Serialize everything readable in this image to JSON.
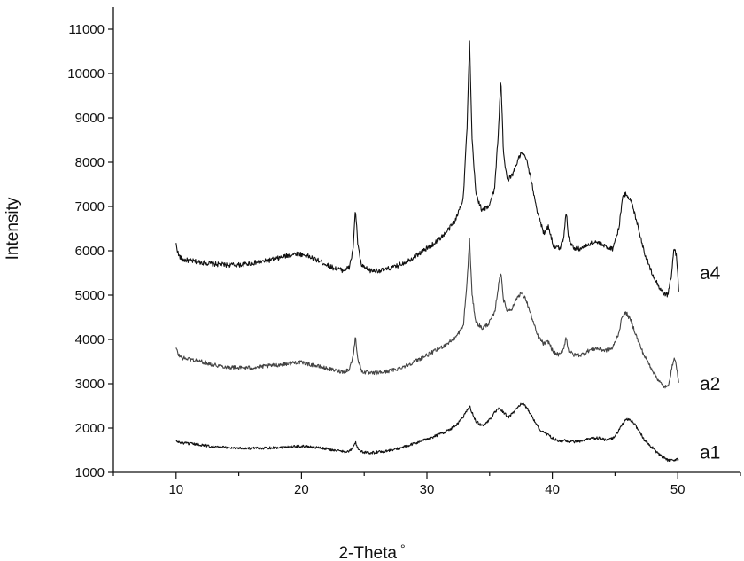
{
  "chart_data": {
    "type": "line",
    "xlabel": "2-Theta",
    "xlabel_suffix": "°",
    "ylabel": "Intensity",
    "xlim": [
      5,
      55
    ],
    "ylim": [
      1000,
      11500
    ],
    "xticks": [
      10,
      20,
      30,
      40,
      50
    ],
    "yticks": [
      1000,
      2000,
      3000,
      4000,
      5000,
      6000,
      7000,
      8000,
      9000,
      10000,
      11000
    ],
    "series": [
      {
        "name": "a4",
        "color": "#111111",
        "points": [
          [
            10.0,
            6150
          ],
          [
            10.2,
            5900
          ],
          [
            10.5,
            5800
          ],
          [
            11,
            5780
          ],
          [
            12,
            5740
          ],
          [
            13,
            5700
          ],
          [
            14,
            5680
          ],
          [
            15,
            5680
          ],
          [
            16,
            5720
          ],
          [
            17,
            5760
          ],
          [
            18,
            5820
          ],
          [
            19,
            5900
          ],
          [
            19.7,
            5940
          ],
          [
            20.5,
            5880
          ],
          [
            21.5,
            5760
          ],
          [
            22.5,
            5620
          ],
          [
            23.3,
            5560
          ],
          [
            23.8,
            5620
          ],
          [
            24.1,
            6000
          ],
          [
            24.3,
            6950
          ],
          [
            24.5,
            6100
          ],
          [
            24.8,
            5650
          ],
          [
            25.5,
            5550
          ],
          [
            26.5,
            5560
          ],
          [
            27.5,
            5640
          ],
          [
            28.5,
            5780
          ],
          [
            29.5,
            5960
          ],
          [
            30.5,
            6150
          ],
          [
            31.5,
            6400
          ],
          [
            32.3,
            6700
          ],
          [
            32.9,
            7200
          ],
          [
            33.2,
            8800
          ],
          [
            33.4,
            10700
          ],
          [
            33.6,
            8500
          ],
          [
            33.9,
            7300
          ],
          [
            34.4,
            6900
          ],
          [
            34.9,
            7000
          ],
          [
            35.4,
            7400
          ],
          [
            35.7,
            8700
          ],
          [
            35.9,
            9900
          ],
          [
            36.1,
            8200
          ],
          [
            36.4,
            7600
          ],
          [
            36.8,
            7700
          ],
          [
            37.2,
            8000
          ],
          [
            37.5,
            8200
          ],
          [
            37.9,
            8100
          ],
          [
            38.3,
            7600
          ],
          [
            38.8,
            6900
          ],
          [
            39.3,
            6400
          ],
          [
            39.7,
            6550
          ],
          [
            40.1,
            6100
          ],
          [
            40.6,
            6050
          ],
          [
            40.9,
            6300
          ],
          [
            41.1,
            6900
          ],
          [
            41.3,
            6300
          ],
          [
            41.7,
            6050
          ],
          [
            42.3,
            6050
          ],
          [
            42.9,
            6150
          ],
          [
            43.5,
            6200
          ],
          [
            44.2,
            6100
          ],
          [
            44.8,
            6050
          ],
          [
            45.3,
            6500
          ],
          [
            45.6,
            7200
          ],
          [
            45.9,
            7300
          ],
          [
            46.3,
            7100
          ],
          [
            46.8,
            6600
          ],
          [
            47.3,
            6000
          ],
          [
            47.8,
            5600
          ],
          [
            48.3,
            5300
          ],
          [
            48.8,
            5050
          ],
          [
            49.2,
            5000
          ],
          [
            49.5,
            5450
          ],
          [
            49.7,
            6050
          ],
          [
            49.9,
            5900
          ],
          [
            50.1,
            5050
          ]
        ]
      },
      {
        "name": "a2",
        "color": "#444444",
        "points": [
          [
            10.0,
            3800
          ],
          [
            10.2,
            3650
          ],
          [
            10.5,
            3580
          ],
          [
            11,
            3560
          ],
          [
            12,
            3500
          ],
          [
            13,
            3430
          ],
          [
            14,
            3380
          ],
          [
            15,
            3360
          ],
          [
            16,
            3360
          ],
          [
            17,
            3390
          ],
          [
            18,
            3420
          ],
          [
            19,
            3460
          ],
          [
            19.7,
            3490
          ],
          [
            20.5,
            3450
          ],
          [
            21.5,
            3380
          ],
          [
            22.5,
            3310
          ],
          [
            23.3,
            3270
          ],
          [
            23.8,
            3320
          ],
          [
            24.1,
            3600
          ],
          [
            24.3,
            4050
          ],
          [
            24.5,
            3550
          ],
          [
            24.8,
            3280
          ],
          [
            25.5,
            3230
          ],
          [
            26.5,
            3260
          ],
          [
            27.5,
            3320
          ],
          [
            28.5,
            3430
          ],
          [
            29.5,
            3570
          ],
          [
            30.5,
            3720
          ],
          [
            31.5,
            3880
          ],
          [
            32.3,
            4050
          ],
          [
            32.9,
            4300
          ],
          [
            33.2,
            5300
          ],
          [
            33.4,
            6250
          ],
          [
            33.6,
            5000
          ],
          [
            33.9,
            4400
          ],
          [
            34.4,
            4250
          ],
          [
            34.9,
            4350
          ],
          [
            35.4,
            4600
          ],
          [
            35.7,
            5200
          ],
          [
            35.9,
            5550
          ],
          [
            36.1,
            4900
          ],
          [
            36.4,
            4650
          ],
          [
            36.8,
            4700
          ],
          [
            37.2,
            4950
          ],
          [
            37.5,
            5050
          ],
          [
            37.9,
            4900
          ],
          [
            38.3,
            4550
          ],
          [
            38.8,
            4100
          ],
          [
            39.3,
            3900
          ],
          [
            39.7,
            3950
          ],
          [
            40.1,
            3700
          ],
          [
            40.6,
            3650
          ],
          [
            40.9,
            3800
          ],
          [
            41.1,
            4050
          ],
          [
            41.3,
            3750
          ],
          [
            41.7,
            3650
          ],
          [
            42.3,
            3650
          ],
          [
            42.9,
            3750
          ],
          [
            43.5,
            3800
          ],
          [
            44.2,
            3750
          ],
          [
            44.8,
            3800
          ],
          [
            45.3,
            4150
          ],
          [
            45.6,
            4550
          ],
          [
            45.9,
            4600
          ],
          [
            46.3,
            4400
          ],
          [
            46.8,
            4000
          ],
          [
            47.3,
            3650
          ],
          [
            47.8,
            3400
          ],
          [
            48.3,
            3150
          ],
          [
            48.8,
            2950
          ],
          [
            49.2,
            2920
          ],
          [
            49.5,
            3300
          ],
          [
            49.7,
            3600
          ],
          [
            49.9,
            3400
          ],
          [
            50.1,
            2950
          ]
        ]
      },
      {
        "name": "a1",
        "color": "#111111",
        "points": [
          [
            10.0,
            1700
          ],
          [
            10.5,
            1660
          ],
          [
            11,
            1650
          ],
          [
            12,
            1620
          ],
          [
            13,
            1580
          ],
          [
            14,
            1560
          ],
          [
            15,
            1550
          ],
          [
            16,
            1540
          ],
          [
            17,
            1550
          ],
          [
            18,
            1560
          ],
          [
            19,
            1580
          ],
          [
            20,
            1590
          ],
          [
            21,
            1570
          ],
          [
            22,
            1530
          ],
          [
            23,
            1480
          ],
          [
            23.8,
            1470
          ],
          [
            24.1,
            1550
          ],
          [
            24.3,
            1680
          ],
          [
            24.5,
            1540
          ],
          [
            24.8,
            1460
          ],
          [
            25.5,
            1440
          ],
          [
            26.5,
            1470
          ],
          [
            27.5,
            1520
          ],
          [
            28.5,
            1600
          ],
          [
            29.5,
            1700
          ],
          [
            30.5,
            1800
          ],
          [
            31.5,
            1920
          ],
          [
            32.3,
            2050
          ],
          [
            32.9,
            2250
          ],
          [
            33.2,
            2400
          ],
          [
            33.4,
            2500
          ],
          [
            33.6,
            2350
          ],
          [
            33.9,
            2150
          ],
          [
            34.4,
            2050
          ],
          [
            34.9,
            2150
          ],
          [
            35.4,
            2350
          ],
          [
            35.8,
            2450
          ],
          [
            36.1,
            2350
          ],
          [
            36.5,
            2250
          ],
          [
            36.9,
            2350
          ],
          [
            37.3,
            2500
          ],
          [
            37.6,
            2550
          ],
          [
            38,
            2450
          ],
          [
            38.5,
            2200
          ],
          [
            39,
            1950
          ],
          [
            39.5,
            1880
          ],
          [
            40,
            1780
          ],
          [
            40.5,
            1700
          ],
          [
            41,
            1720
          ],
          [
            41.5,
            1690
          ],
          [
            42.3,
            1700
          ],
          [
            43,
            1760
          ],
          [
            43.7,
            1780
          ],
          [
            44.4,
            1720
          ],
          [
            45,
            1800
          ],
          [
            45.5,
            2050
          ],
          [
            45.9,
            2200
          ],
          [
            46.4,
            2150
          ],
          [
            46.9,
            1950
          ],
          [
            47.4,
            1700
          ],
          [
            48,
            1550
          ],
          [
            48.6,
            1380
          ],
          [
            49.2,
            1270
          ],
          [
            49.7,
            1280
          ],
          [
            50.1,
            1300
          ]
        ]
      }
    ],
    "grid": false,
    "legend": "inline-right"
  }
}
